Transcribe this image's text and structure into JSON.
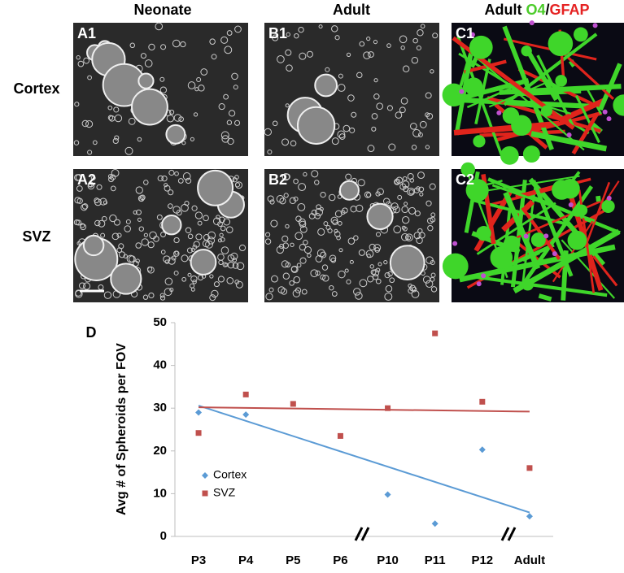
{
  "figure": {
    "column_headers": [
      "Neonate",
      "Adult"
    ],
    "stain_header": {
      "prefix": "Adult",
      "marker1": "O4",
      "separator": "/",
      "marker2": "GFAP"
    },
    "row_labels": [
      "Cortex",
      "SVZ"
    ],
    "panel_labels": [
      "A1",
      "B1",
      "C1",
      "A2",
      "B2",
      "C2"
    ],
    "chart_label": "D"
  },
  "chart_data": {
    "type": "scatter",
    "y_label": "Avg # of Spheroids per FOV",
    "categories": [
      "P3",
      "P4",
      "P5",
      "P6",
      "P10",
      "P11",
      "P12",
      "Adult"
    ],
    "series": [
      {
        "name": "Cortex",
        "color": "#5b9bd5",
        "marker": "diamond",
        "values": [
          29,
          28.5,
          null,
          null,
          9.8,
          3,
          20.3,
          4.7
        ],
        "trend": [
          30.6,
          5.6
        ]
      },
      {
        "name": "SVZ",
        "color": "#c0504d",
        "marker": "square",
        "values": [
          24.2,
          33.2,
          31,
          23.5,
          30,
          47.5,
          31.5,
          16
        ],
        "trend": [
          30.2,
          29.2
        ]
      }
    ],
    "ylim": [
      0,
      50
    ],
    "yticks": [
      0,
      10,
      20,
      30,
      40,
      50
    ],
    "legend": "bottom-left"
  }
}
